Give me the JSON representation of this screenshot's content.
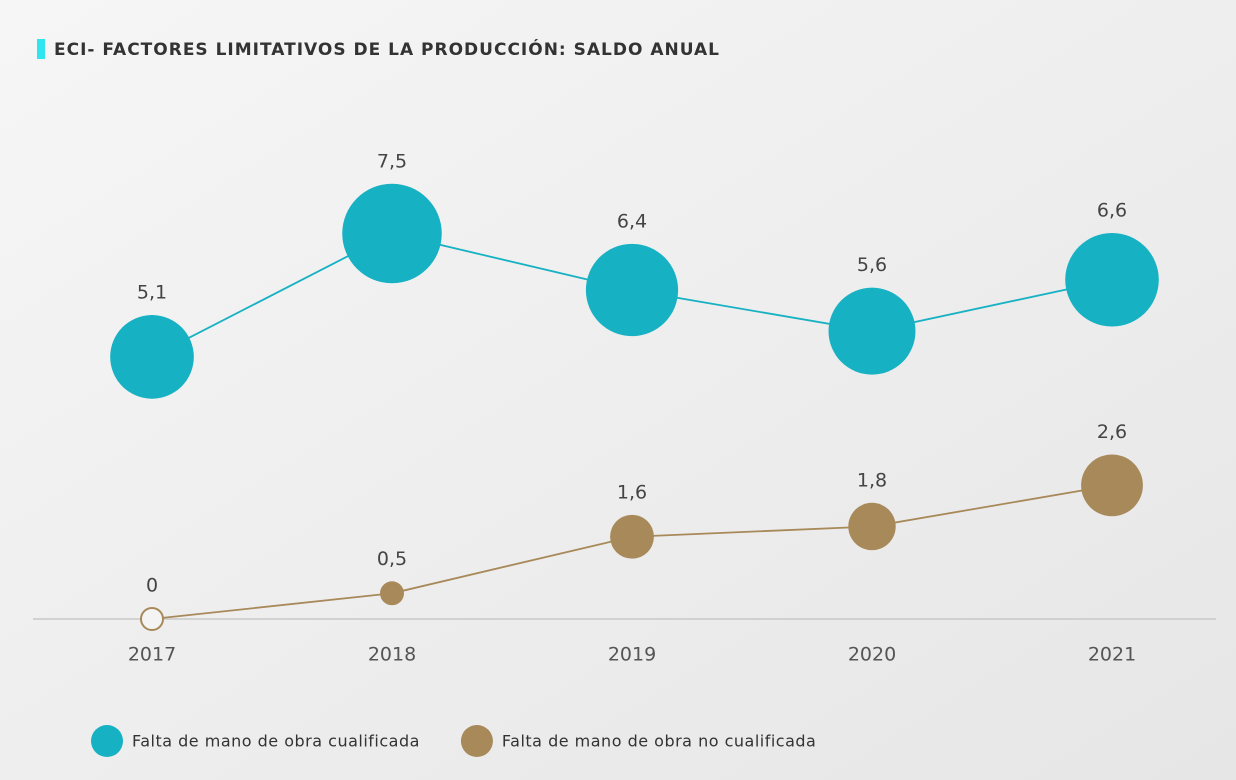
{
  "chart_data": {
    "type": "line",
    "title": "ECI- FACTORES LIMITATIVOS DE LA PRODUCCIÓN: SALDO ANUAL",
    "categories": [
      "2017",
      "2018",
      "2019",
      "2020",
      "2021"
    ],
    "series": [
      {
        "name": "Falta de mano de obra cualificada",
        "color": "#17b1c4",
        "values": [
          5.1,
          7.5,
          6.4,
          5.6,
          6.6
        ],
        "value_labels": [
          "5,1",
          "7,5",
          "6,4",
          "5,6",
          "6,6"
        ]
      },
      {
        "name": "Falta de mano de obra no cualificada",
        "color": "#a8895a",
        "values": [
          0,
          0.5,
          1.6,
          1.8,
          2.6
        ],
        "value_labels": [
          "0",
          "0,5",
          "1,6",
          "1,8",
          "2,6"
        ]
      }
    ],
    "ylim": [
      0,
      10
    ],
    "grid": false,
    "legend": "bottom"
  }
}
